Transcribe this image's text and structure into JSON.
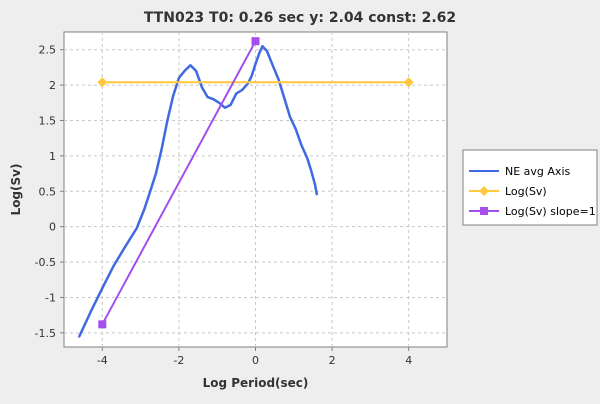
{
  "chart_data": {
    "type": "line",
    "title": "TTN023 T0: 0.26 sec  y: 2.04 const: 2.62",
    "xlabel": "Log Period(sec)",
    "ylabel": "Log(Sv)",
    "xlim": [
      -5,
      5
    ],
    "ylim": [
      -1.7,
      2.75
    ],
    "grid": true,
    "legend_position": "right",
    "xticks": [
      {
        "value": -4,
        "label": "-4"
      },
      {
        "value": -2,
        "label": "-2"
      },
      {
        "value": 0,
        "label": "0"
      },
      {
        "value": 2,
        "label": "2"
      },
      {
        "value": 4,
        "label": "4"
      }
    ],
    "yticks": [
      {
        "value": -1.5,
        "label": "-1.5"
      },
      {
        "value": -1,
        "label": "-1"
      },
      {
        "value": -0.5,
        "label": "-0.5"
      },
      {
        "value": 0,
        "label": "0"
      },
      {
        "value": 0.5,
        "label": "0.5"
      },
      {
        "value": 1,
        "label": "1"
      },
      {
        "value": 1.5,
        "label": "1.5"
      },
      {
        "value": 2,
        "label": "2"
      },
      {
        "value": 2.5,
        "label": "2.5"
      }
    ],
    "series": [
      {
        "name": "NE avg Axis",
        "color": "#4169e1",
        "marker": "none",
        "points": [
          {
            "x": -4.6,
            "y": -1.55
          },
          {
            "x": -4.3,
            "y": -1.2
          },
          {
            "x": -4.0,
            "y": -0.87
          },
          {
            "x": -3.7,
            "y": -0.55
          },
          {
            "x": -3.4,
            "y": -0.28
          },
          {
            "x": -3.1,
            "y": -0.02
          },
          {
            "x": -2.9,
            "y": 0.25
          },
          {
            "x": -2.75,
            "y": 0.5
          },
          {
            "x": -2.6,
            "y": 0.75
          },
          {
            "x": -2.45,
            "y": 1.1
          },
          {
            "x": -2.3,
            "y": 1.5
          },
          {
            "x": -2.15,
            "y": 1.85
          },
          {
            "x": -2.0,
            "y": 2.1
          },
          {
            "x": -1.85,
            "y": 2.2
          },
          {
            "x": -1.7,
            "y": 2.28
          },
          {
            "x": -1.55,
            "y": 2.2
          },
          {
            "x": -1.4,
            "y": 1.97
          },
          {
            "x": -1.25,
            "y": 1.83
          },
          {
            "x": -1.1,
            "y": 1.8
          },
          {
            "x": -0.95,
            "y": 1.75
          },
          {
            "x": -0.8,
            "y": 1.68
          },
          {
            "x": -0.65,
            "y": 1.72
          },
          {
            "x": -0.5,
            "y": 1.88
          },
          {
            "x": -0.35,
            "y": 1.93
          },
          {
            "x": -0.2,
            "y": 2.02
          },
          {
            "x": -0.1,
            "y": 2.13
          },
          {
            "x": 0.0,
            "y": 2.3
          },
          {
            "x": 0.1,
            "y": 2.45
          },
          {
            "x": 0.18,
            "y": 2.55
          },
          {
            "x": 0.3,
            "y": 2.48
          },
          {
            "x": 0.45,
            "y": 2.28
          },
          {
            "x": 0.6,
            "y": 2.08
          },
          {
            "x": 0.75,
            "y": 1.82
          },
          {
            "x": 0.9,
            "y": 1.55
          },
          {
            "x": 1.05,
            "y": 1.38
          },
          {
            "x": 1.2,
            "y": 1.15
          },
          {
            "x": 1.35,
            "y": 0.97
          },
          {
            "x": 1.45,
            "y": 0.8
          },
          {
            "x": 1.55,
            "y": 0.6
          },
          {
            "x": 1.6,
            "y": 0.46
          }
        ]
      },
      {
        "name": "Log(Sv)",
        "color": "#ffc83d",
        "marker": "diamond",
        "points": [
          {
            "x": -4.0,
            "y": 2.04
          },
          {
            "x": 4.0,
            "y": 2.04
          }
        ]
      },
      {
        "name": "Log(Sv) slope=1",
        "color": "#a44ef0",
        "marker": "square",
        "points": [
          {
            "x": -4.0,
            "y": -1.38
          },
          {
            "x": 0.0,
            "y": 2.62
          }
        ]
      }
    ]
  }
}
